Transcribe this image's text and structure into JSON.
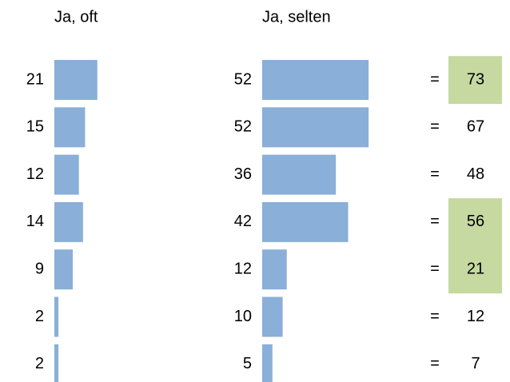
{
  "chart_data": {
    "type": "bar",
    "series": [
      {
        "name": "Ja, oft",
        "color": "#8aafd8",
        "values": [
          21,
          15,
          12,
          14,
          9,
          2,
          2
        ]
      },
      {
        "name": "Ja, selten",
        "color": "#8aafd8",
        "values": [
          52,
          52,
          36,
          42,
          12,
          10,
          5
        ]
      }
    ],
    "equals_sign": "=",
    "totals": [
      73,
      67,
      48,
      56,
      21,
      12,
      7
    ],
    "highlighted": [
      true,
      false,
      false,
      true,
      true,
      false,
      false
    ],
    "highlight_color": "#c5d9a0"
  }
}
